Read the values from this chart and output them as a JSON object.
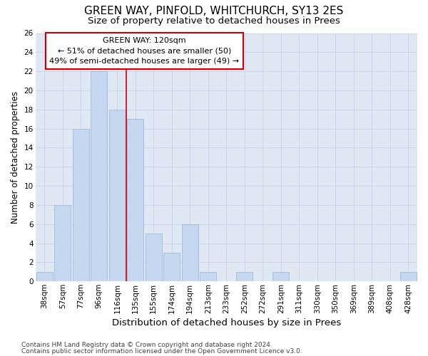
{
  "title": "GREEN WAY, PINFOLD, WHITCHURCH, SY13 2ES",
  "subtitle": "Size of property relative to detached houses in Prees",
  "xlabel": "Distribution of detached houses by size in Prees",
  "ylabel": "Number of detached properties",
  "categories": [
    "38sqm",
    "57sqm",
    "77sqm",
    "96sqm",
    "116sqm",
    "135sqm",
    "155sqm",
    "174sqm",
    "194sqm",
    "213sqm",
    "233sqm",
    "252sqm",
    "272sqm",
    "291sqm",
    "311sqm",
    "330sqm",
    "350sqm",
    "369sqm",
    "389sqm",
    "408sqm",
    "428sqm"
  ],
  "values": [
    1,
    8,
    16,
    22,
    18,
    17,
    5,
    3,
    6,
    1,
    0,
    1,
    0,
    1,
    0,
    0,
    0,
    0,
    0,
    0,
    1
  ],
  "bar_color": "#c5d8f0",
  "bar_edge_color": "#a0b8d8",
  "vline_color": "#cc0000",
  "vline_x": 4.5,
  "annotation_box_text": "GREEN WAY: 120sqm\n← 51% of detached houses are smaller (50)\n49% of semi-detached houses are larger (49) →",
  "annotation_box_edge_color": "#cc0000",
  "ylim": [
    0,
    26
  ],
  "yticks": [
    0,
    2,
    4,
    6,
    8,
    10,
    12,
    14,
    16,
    18,
    20,
    22,
    24,
    26
  ],
  "grid_color": "#c8d4e8",
  "plot_bg_color": "#e0e8f4",
  "footer_line1": "Contains HM Land Registry data © Crown copyright and database right 2024.",
  "footer_line2": "Contains public sector information licensed under the Open Government Licence v3.0.",
  "title_fontsize": 11,
  "subtitle_fontsize": 9.5,
  "xlabel_fontsize": 9.5,
  "ylabel_fontsize": 8.5,
  "tick_fontsize": 7.5,
  "annotation_fontsize": 8,
  "footer_fontsize": 6.5
}
